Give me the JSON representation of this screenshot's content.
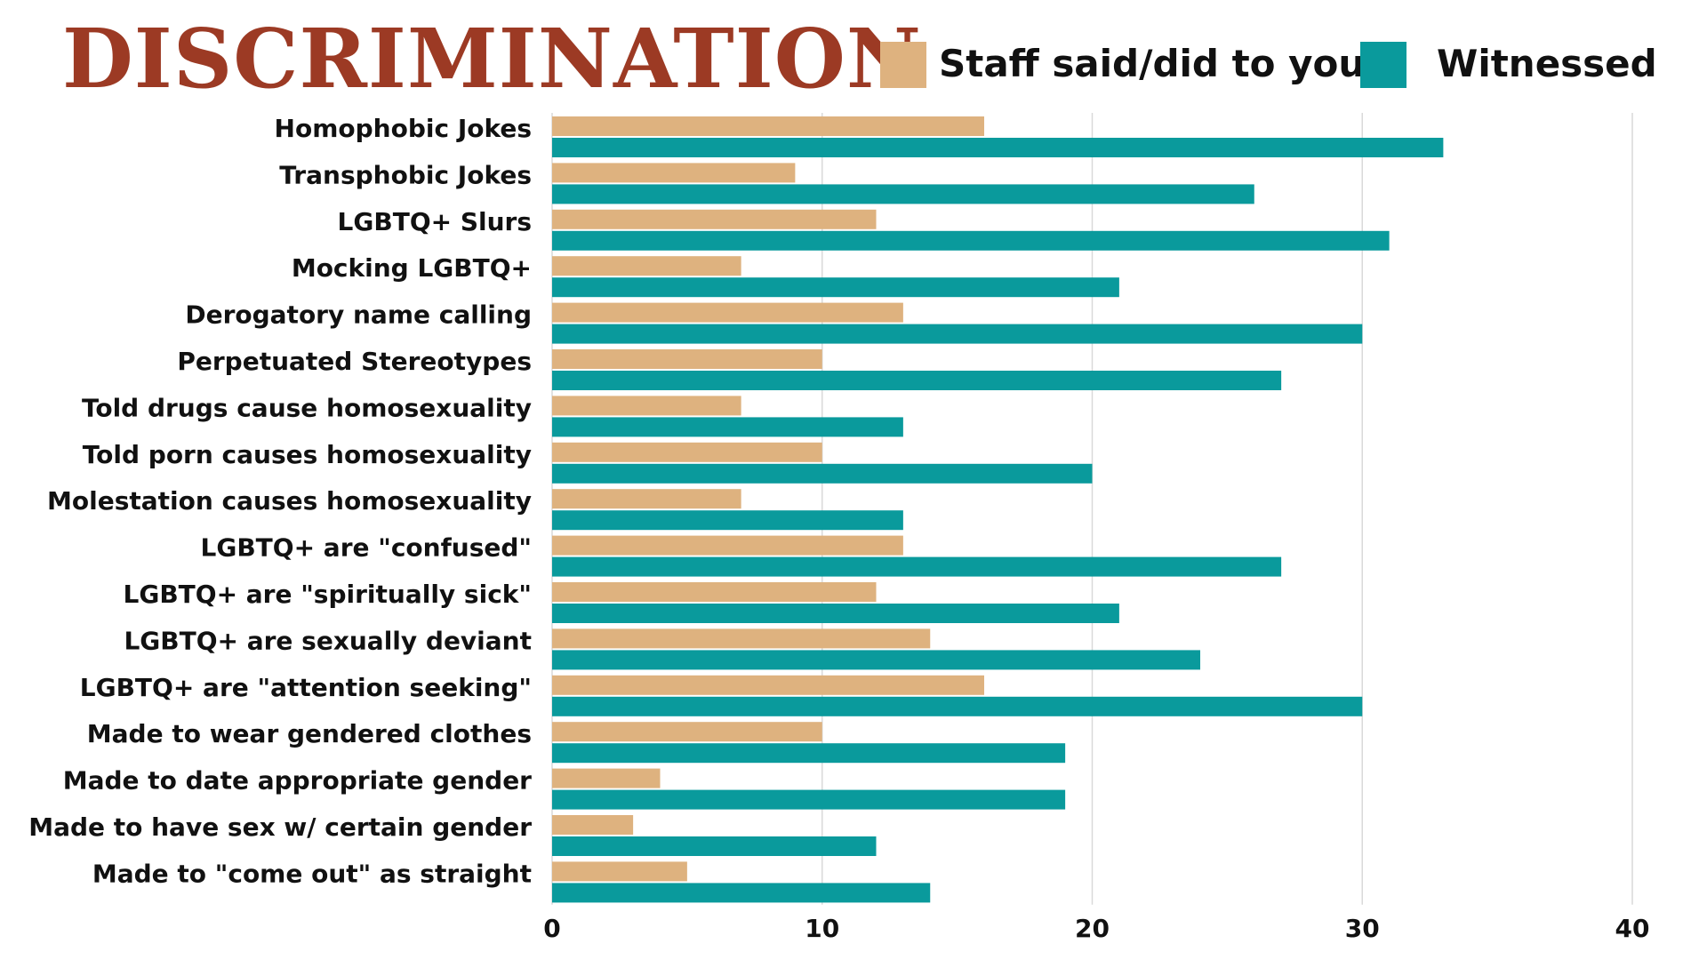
{
  "chart_data": {
    "type": "bar",
    "orientation": "horizontal",
    "title": "DISCRIMINATION",
    "categories": [
      "Homophobic Jokes",
      "Transphobic Jokes",
      "LGBTQ+ Slurs",
      "Mocking LGBTQ+",
      "Derogatory name calling",
      "Perpetuated Stereotypes",
      "Told drugs cause homosexuality",
      "Told porn causes homosexuality",
      "Molestation causes homosexuality",
      "LGBTQ+ are \"confused\"",
      "LGBTQ+ are \"spiritually sick\"",
      "LGBTQ+ are sexually deviant",
      "LGBTQ+ are \"attention seeking\"",
      "Made to wear gendered clothes",
      "Made to date appropriate gender",
      "Made to have sex w/ certain gender",
      "Made to \"come out\" as straight"
    ],
    "series": [
      {
        "name": "Staff said/did to you",
        "color": "#deb27f",
        "values": [
          16,
          9,
          12,
          7,
          13,
          10,
          7,
          10,
          7,
          13,
          12,
          14,
          16,
          10,
          4,
          3,
          5
        ]
      },
      {
        "name": "Witnessed",
        "color": "#0a9a9c",
        "values": [
          33,
          26,
          31,
          21,
          30,
          27,
          13,
          20,
          13,
          27,
          21,
          24,
          30,
          19,
          19,
          12,
          14
        ]
      }
    ],
    "xlim": [
      0,
      40
    ],
    "xticks": [
      "0",
      "10",
      "20",
      "30",
      "40"
    ],
    "xtick_values": [
      0,
      10,
      20,
      30,
      40
    ],
    "grid": true,
    "legend_position": "top-right",
    "title_color": "#9c3a24"
  }
}
